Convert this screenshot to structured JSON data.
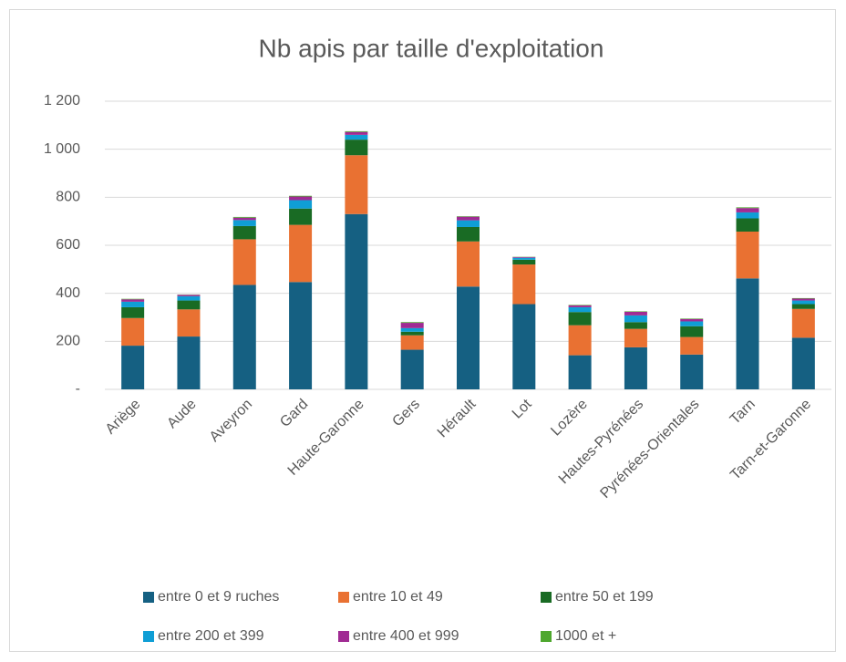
{
  "chart_data": {
    "type": "stacked_bar",
    "title": "Nb apis par taille d'exploitation",
    "categories": [
      "Ariège",
      "Aude",
      "Aveyron",
      "Gard",
      "Haute-Garonne",
      "Gers",
      "Hérault",
      "Lot",
      "Lozère",
      "Hautes-Pyrénées",
      "Pyrénées-Orientales",
      "Tarn",
      "Tarn-et-Garonne"
    ],
    "series": [
      {
        "name": "entre 0 et 9 ruches",
        "color": "#156082",
        "values": [
          182,
          220,
          435,
          447,
          730,
          165,
          428,
          355,
          142,
          175,
          145,
          462,
          215
        ]
      },
      {
        "name": "entre 10 et 49",
        "color": "#e97132",
        "values": [
          115,
          113,
          190,
          238,
          245,
          60,
          188,
          165,
          125,
          77,
          73,
          195,
          120
        ]
      },
      {
        "name": "entre 50 et 199",
        "color": "#196b24",
        "values": [
          45,
          37,
          55,
          68,
          65,
          15,
          60,
          20,
          55,
          28,
          45,
          55,
          20
        ]
      },
      {
        "name": "entre 200 et 399",
        "color": "#0f9ed5",
        "values": [
          23,
          18,
          25,
          35,
          20,
          15,
          28,
          8,
          20,
          28,
          20,
          25,
          15
        ]
      },
      {
        "name": "entre 400 et 999",
        "color": "#a02b93",
        "values": [
          10,
          6,
          10,
          15,
          12,
          22,
          15,
          3,
          8,
          15,
          10,
          18,
          8
        ]
      },
      {
        "name": "1000 et +",
        "color": "#4ea72e",
        "values": [
          2,
          1,
          3,
          3,
          3,
          3,
          2,
          1,
          2,
          2,
          2,
          3,
          2
        ]
      }
    ],
    "ylim": [
      0,
      1200
    ],
    "yticks": [
      {
        "value": 0,
        "label": "-"
      },
      200,
      400,
      600,
      800,
      {
        "value": 1000,
        "label": "1 000"
      },
      {
        "value": 1200,
        "label": "1 200"
      }
    ],
    "grid": true,
    "legend": "bottom"
  }
}
